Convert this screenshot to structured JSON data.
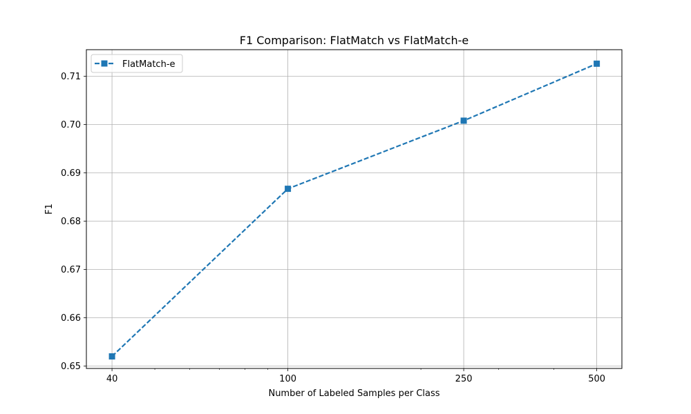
{
  "chart_data": {
    "type": "line",
    "title": "F1 Comparison: FlatMatch vs FlatMatch-e",
    "xlabel": "Number of Labeled Samples per Class",
    "ylabel": "F1",
    "x_scale": "log",
    "x_ticks": [
      40,
      100,
      250,
      500
    ],
    "x_tick_labels": [
      "40",
      "100",
      "250",
      "500"
    ],
    "y_ticks": [
      0.65,
      0.66,
      0.67,
      0.68,
      0.69,
      0.7,
      0.71
    ],
    "y_tick_labels": [
      "0.65",
      "0.66",
      "0.67",
      "0.68",
      "0.69",
      "0.70",
      "0.71"
    ],
    "ylim": [
      0.6495,
      0.7155
    ],
    "xlim": [
      35,
      570
    ],
    "grid": true,
    "legend_position": "top-left",
    "series": [
      {
        "name": "FlatMatch-e",
        "x": [
          40,
          100,
          250,
          500
        ],
        "y": [
          0.652,
          0.6867,
          0.7008,
          0.7126
        ],
        "color": "#1f77b4",
        "line_style": "dashed",
        "marker": "square"
      }
    ]
  }
}
